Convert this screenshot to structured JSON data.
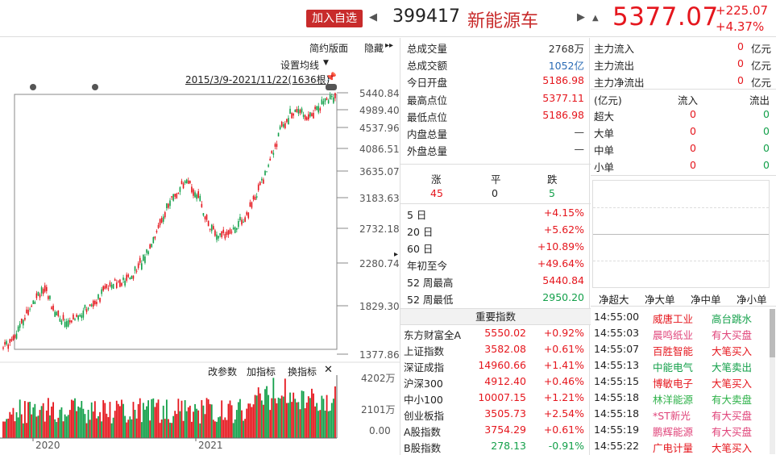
{
  "header": {
    "add_label": "加入自选",
    "code": "399417",
    "name": "新能源车",
    "price": "5377.07",
    "change": "+225.07",
    "pct": "+4.37%"
  },
  "chart": {
    "simple_label": "简约版面",
    "hide_label": "隐藏",
    "ma_label": "设置均线",
    "range_label": "2015/3/9-2021/11/22(1636根)",
    "y_labels": [
      "5440.84",
      "4989.40",
      "4537.96",
      "4086.51",
      "3635.07",
      "3183.63",
      "2732.18",
      "2280.74",
      "1829.30",
      "1377.86"
    ],
    "vol_tools": [
      "改参数",
      "加指标",
      "换指标"
    ],
    "vol_labels": [
      "4202万",
      "2101万",
      "0.00"
    ],
    "x_labels": [
      "2020",
      "2021"
    ],
    "accent_up": "#e5161d",
    "accent_down": "#13a04a"
  },
  "chart_data": {
    "type": "candlestick",
    "series": [
      {
        "name": "price",
        "values": [
          1470,
          1560,
          1640,
          1700,
          1820,
          1950,
          2100,
          2200,
          2300,
          2380,
          2350,
          2200,
          2050,
          1950,
          1880,
          1850,
          1900,
          1950,
          2000,
          2080,
          2120,
          2180,
          2250,
          2350,
          2420,
          2500,
          2520,
          2470,
          2500,
          2550,
          2600,
          2700,
          2800,
          2900,
          3050,
          3200,
          3350,
          3500,
          3650,
          3780,
          3850,
          3950,
          4000,
          4020,
          3950,
          3850,
          3700,
          3500,
          3350,
          3250,
          3180,
          3200,
          3250,
          3300,
          3350,
          3420,
          3500,
          3600,
          3750,
          3900,
          4050,
          4200,
          4400,
          4600,
          4800,
          4950,
          5050,
          5100,
          5150,
          5200,
          5100,
          5050,
          5150,
          5200,
          5280,
          5300,
          5350,
          5377
        ]
      }
    ],
    "y_range": [
      1377.86,
      5440.84
    ]
  },
  "stats": {
    "rows": [
      {
        "label": "总成交量",
        "value": "2768万",
        "color": "gray"
      },
      {
        "label": "总成交额",
        "value": "1052亿",
        "color": "blue"
      },
      {
        "label": "今日开盘",
        "value": "5186.98",
        "color": "red"
      },
      {
        "label": "最高点位",
        "value": "5377.11",
        "color": "red"
      },
      {
        "label": "最低点位",
        "value": "5186.98",
        "color": "red"
      },
      {
        "label": "内盘总量",
        "value": "—",
        "color": "gray"
      },
      {
        "label": "外盘总量",
        "value": "—",
        "color": "gray"
      }
    ],
    "breadth": {
      "up_label": "涨",
      "flat_label": "平",
      "down_label": "跌",
      "up": "45",
      "flat": "0",
      "down": "5"
    },
    "period": [
      {
        "label": "5 日",
        "value": "+4.15%",
        "color": "red"
      },
      {
        "label": "20 日",
        "value": "+5.62%",
        "color": "red"
      },
      {
        "label": "60 日",
        "value": "+10.89%",
        "color": "red"
      },
      {
        "label": "年初至今",
        "value": "+49.64%",
        "color": "red"
      },
      {
        "label": "52 周最高",
        "value": "5440.84",
        "color": "red"
      },
      {
        "label": "52 周最低",
        "value": "2950.20",
        "color": "green"
      }
    ],
    "index_title": "重要指数",
    "indices": [
      {
        "name": "东方财富全A",
        "value": "5550.02",
        "pct": "+0.92%",
        "color": "red"
      },
      {
        "name": "上证指数",
        "value": "3582.08",
        "pct": "+0.61%",
        "color": "red"
      },
      {
        "name": "深证成指",
        "value": "14960.66",
        "pct": "+1.41%",
        "color": "red"
      },
      {
        "name": "沪深300",
        "value": "4912.40",
        "pct": "+0.46%",
        "color": "red"
      },
      {
        "name": "中小100",
        "value": "10007.15",
        "pct": "+1.21%",
        "color": "red"
      },
      {
        "name": "创业板指",
        "value": "3505.73",
        "pct": "+2.54%",
        "color": "red"
      },
      {
        "name": "A股指数",
        "value": "3754.29",
        "pct": "+0.61%",
        "color": "red"
      },
      {
        "name": "B股指数",
        "value": "278.13",
        "pct": "-0.91%",
        "color": "green"
      }
    ]
  },
  "flow": {
    "main": [
      {
        "label": "主力流入",
        "value": "0",
        "unit": "亿元"
      },
      {
        "label": "主力流出",
        "value": "0",
        "unit": "亿元"
      },
      {
        "label": "主力净流出",
        "value": "0",
        "unit": "亿元"
      }
    ],
    "table_header": {
      "unit": "(亿元)",
      "in": "流入",
      "out": "流出"
    },
    "table": [
      {
        "label": "超大",
        "in": "0",
        "out": "0"
      },
      {
        "label": "大单",
        "in": "0",
        "out": "0"
      },
      {
        "label": "中单",
        "in": "0",
        "out": "0"
      },
      {
        "label": "小单",
        "in": "0",
        "out": "0"
      }
    ],
    "tabs": [
      "净超大",
      "净大单",
      "净中单",
      "净小单"
    ],
    "ticks": [
      {
        "time": "14:55:00",
        "name": "威唐工业",
        "action": "高台跳水",
        "ncolor": "red",
        "acolor": "green"
      },
      {
        "time": "14:55:03",
        "name": "晨鸣纸业",
        "action": "有大买盘",
        "ncolor": "pink",
        "acolor": "pink"
      },
      {
        "time": "14:55:07",
        "name": "百胜智能",
        "action": "大笔买入",
        "ncolor": "red",
        "acolor": "red"
      },
      {
        "time": "14:55:13",
        "name": "中能电气",
        "action": "大笔卖出",
        "ncolor": "green",
        "acolor": "green"
      },
      {
        "time": "14:55:15",
        "name": "博敏电子",
        "action": "大笔买入",
        "ncolor": "red",
        "acolor": "red"
      },
      {
        "time": "14:55:18",
        "name": "林洋能源",
        "action": "有大卖盘",
        "ncolor": "lgreen",
        "acolor": "lgreen"
      },
      {
        "time": "14:55:18",
        "name": "*ST新光",
        "action": "有大买盘",
        "ncolor": "pink",
        "acolor": "pink"
      },
      {
        "time": "14:55:19",
        "name": "鹏辉能源",
        "action": "有大买盘",
        "ncolor": "pink",
        "acolor": "pink"
      },
      {
        "time": "14:55:22",
        "name": "广电计量",
        "action": "大笔买入",
        "ncolor": "red",
        "acolor": "red"
      }
    ]
  }
}
